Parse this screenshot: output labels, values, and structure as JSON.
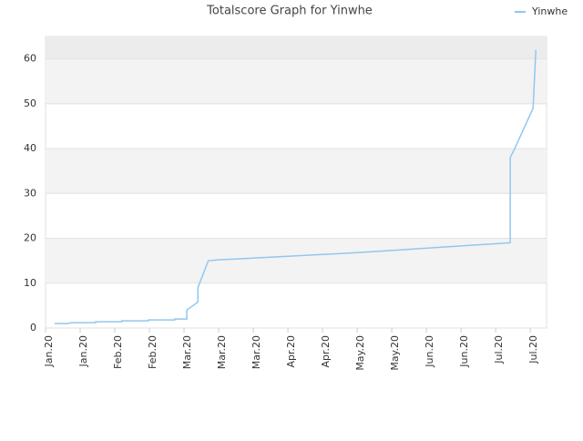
{
  "chart_data": {
    "type": "line",
    "title": "Totalscore Graph for Yinwhe",
    "x": [
      0.26,
      0.63,
      0.74,
      1.45,
      1.45,
      2.2,
      2.2,
      2.97,
      2.97,
      3.73,
      3.73,
      4.08,
      4.08,
      4.35,
      4.4,
      4.4,
      4.7,
      5.0,
      6.0,
      7.0,
      8.0,
      9.0,
      10.0,
      11.0,
      12.0,
      13.0,
      13.42,
      13.42,
      13.55,
      14.08,
      14.16
    ],
    "series": [
      {
        "name": "Yinwhe",
        "color": "#90c8f0",
        "values": [
          1,
          1,
          1.2,
          1.2,
          1.4,
          1.4,
          1.6,
          1.6,
          1.8,
          1.8,
          2.0,
          2.0,
          4,
          5.5,
          5.8,
          9,
          15,
          15.2,
          15.6,
          16.0,
          16.4,
          16.8,
          17.3,
          17.8,
          18.3,
          18.8,
          19,
          38,
          40,
          49,
          62
        ]
      }
    ],
    "xlim": [
      0,
      14.47
    ],
    "xticks": [
      {
        "value": 0,
        "label": "Jan.20"
      },
      {
        "value": 1,
        "label": "Jan.20"
      },
      {
        "value": 2,
        "label": "Feb.20"
      },
      {
        "value": 3,
        "label": "Feb.20"
      },
      {
        "value": 4,
        "label": "Mar.20"
      },
      {
        "value": 5,
        "label": "Mar.20"
      },
      {
        "value": 6,
        "label": "Mar.20"
      },
      {
        "value": 7,
        "label": "Apr.20"
      },
      {
        "value": 8,
        "label": "Apr.20"
      },
      {
        "value": 9,
        "label": "May.20"
      },
      {
        "value": 10,
        "label": "May.20"
      },
      {
        "value": 11,
        "label": "Jun.20"
      },
      {
        "value": 12,
        "label": "Jun.20"
      },
      {
        "value": 13,
        "label": "Jul.20"
      },
      {
        "value": 14,
        "label": "Jul.20"
      }
    ],
    "ylim": [
      0,
      65
    ],
    "yticks": [
      0,
      10,
      20,
      30,
      40,
      50,
      60
    ],
    "grid": true,
    "legend": "top-right"
  }
}
